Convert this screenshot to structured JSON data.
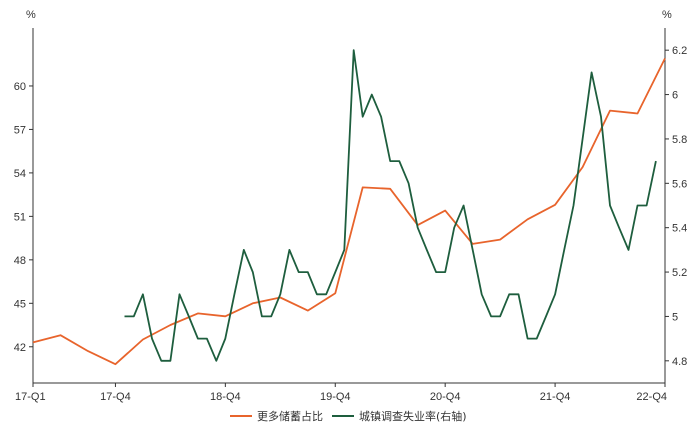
{
  "chart_data": {
    "type": "line",
    "left_unit": "%",
    "right_unit": "%",
    "x_tick_labels": [
      "17-Q1",
      "17-Q4",
      "18-Q4",
      "19-Q4",
      "20-Q4",
      "21-Q4",
      "22-Q4"
    ],
    "x_tick_positions": [
      0,
      3,
      7,
      11,
      15,
      19,
      23
    ],
    "left_axis": {
      "ylim": [
        39.5,
        64.0
      ],
      "ticks": [
        42,
        45,
        48,
        51,
        54,
        57,
        60
      ]
    },
    "right_axis": {
      "ylim": [
        4.7,
        6.3
      ],
      "ticks": [
        4.8,
        5.0,
        5.2,
        5.4,
        5.6,
        5.8,
        6.0,
        6.2
      ],
      "tick_labels": [
        "4.8",
        "5",
        "5.2",
        "5.4",
        "5.6",
        "5.8",
        "6",
        "6.2"
      ]
    },
    "series": [
      {
        "name": "更多储蓄占比",
        "axis": "left",
        "color": "#e8642c",
        "x": [
          0,
          1,
          2,
          3,
          4,
          5,
          6,
          7,
          8,
          9,
          10,
          11,
          12,
          13,
          14,
          15,
          16,
          17,
          18,
          19,
          20,
          21,
          22,
          23
        ],
        "values": [
          42.3,
          42.8,
          41.7,
          40.8,
          42.5,
          43.5,
          44.3,
          44.1,
          45.0,
          45.4,
          44.5,
          45.7,
          53.0,
          52.9,
          50.4,
          51.4,
          49.1,
          49.4,
          50.8,
          51.8,
          54.4,
          58.3,
          58.1,
          61.9
        ]
      },
      {
        "name": "城镇调查失业率(右轴)",
        "axis": "right",
        "color": "#1e5e3e",
        "x": [
          3.33,
          3.67,
          4.0,
          4.33,
          4.67,
          5.0,
          5.33,
          5.67,
          6.0,
          6.33,
          6.67,
          7.0,
          7.33,
          7.67,
          8.0,
          8.33,
          8.67,
          9.0,
          9.33,
          9.67,
          10.0,
          10.33,
          10.67,
          11.0,
          11.33,
          11.67,
          12.0,
          12.33,
          12.67,
          13.0,
          13.33,
          13.67,
          14.0,
          14.33,
          14.67,
          15.0,
          15.33,
          15.67,
          16.0,
          16.33,
          16.67,
          17.0,
          17.33,
          17.67,
          18.0,
          18.33,
          18.67,
          19.0,
          19.33,
          19.67,
          20.0,
          20.33,
          20.67,
          21.0,
          21.33,
          21.67,
          22.0,
          22.33,
          22.67
        ],
        "values": [
          5.0,
          5.0,
          5.1,
          4.9,
          4.8,
          4.8,
          5.1,
          5.0,
          4.9,
          4.9,
          4.8,
          4.9,
          5.1,
          5.3,
          5.2,
          5.0,
          5.0,
          5.1,
          5.3,
          5.2,
          5.2,
          5.1,
          5.1,
          5.2,
          5.3,
          6.2,
          5.9,
          6.0,
          5.9,
          5.7,
          5.7,
          5.6,
          5.4,
          5.3,
          5.2,
          5.2,
          5.4,
          5.5,
          5.3,
          5.1,
          5.0,
          5.0,
          5.1,
          5.1,
          4.9,
          4.9,
          5.0,
          5.1,
          5.3,
          5.5,
          5.8,
          6.1,
          5.9,
          5.5,
          5.4,
          5.3,
          5.5,
          5.5,
          5.7
        ]
      }
    ],
    "grid": false,
    "legend_position": "bottom-center"
  }
}
